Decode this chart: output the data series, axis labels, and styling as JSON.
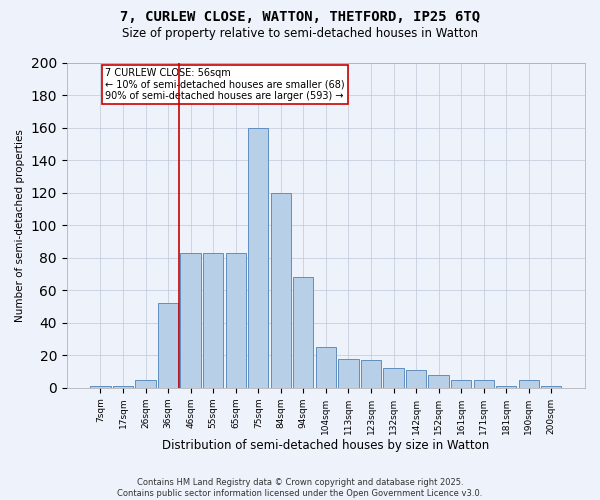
{
  "title1": "7, CURLEW CLOSE, WATTON, THETFORD, IP25 6TQ",
  "title2": "Size of property relative to semi-detached houses in Watton",
  "xlabel": "Distribution of semi-detached houses by size in Watton",
  "ylabel": "Number of semi-detached properties",
  "categories": [
    "7sqm",
    "17sqm",
    "26sqm",
    "36sqm",
    "46sqm",
    "55sqm",
    "65sqm",
    "75sqm",
    "84sqm",
    "94sqm",
    "104sqm",
    "113sqm",
    "123sqm",
    "132sqm",
    "142sqm",
    "152sqm",
    "161sqm",
    "171sqm",
    "181sqm",
    "190sqm",
    "200sqm"
  ],
  "values": [
    1,
    1,
    5,
    52,
    83,
    83,
    83,
    160,
    120,
    68,
    25,
    18,
    17,
    12,
    11,
    8,
    5,
    5,
    1,
    5,
    1
  ],
  "bar_color": "#b8cfe8",
  "bar_edge_color": "#5f8fc0",
  "vline_idx": 4,
  "vline_color": "#cc0000",
  "annotation_text": "7 CURLEW CLOSE: 56sqm\n← 10% of semi-detached houses are smaller (68)\n90% of semi-detached houses are larger (593) →",
  "annotation_box_color": "white",
  "annotation_box_edge": "#cc0000",
  "footer_line1": "Contains HM Land Registry data © Crown copyright and database right 2025.",
  "footer_line2": "Contains public sector information licensed under the Open Government Licence v3.0.",
  "bg_color": "#eef2fa",
  "ylim": [
    0,
    200
  ],
  "yticks": [
    0,
    20,
    40,
    60,
    80,
    100,
    120,
    140,
    160,
    180,
    200
  ],
  "title1_fontsize": 10,
  "title2_fontsize": 8.5,
  "ylabel_fontsize": 7.5,
  "xlabel_fontsize": 8.5,
  "tick_fontsize": 6.5,
  "footer_fontsize": 6,
  "annot_fontsize": 7
}
